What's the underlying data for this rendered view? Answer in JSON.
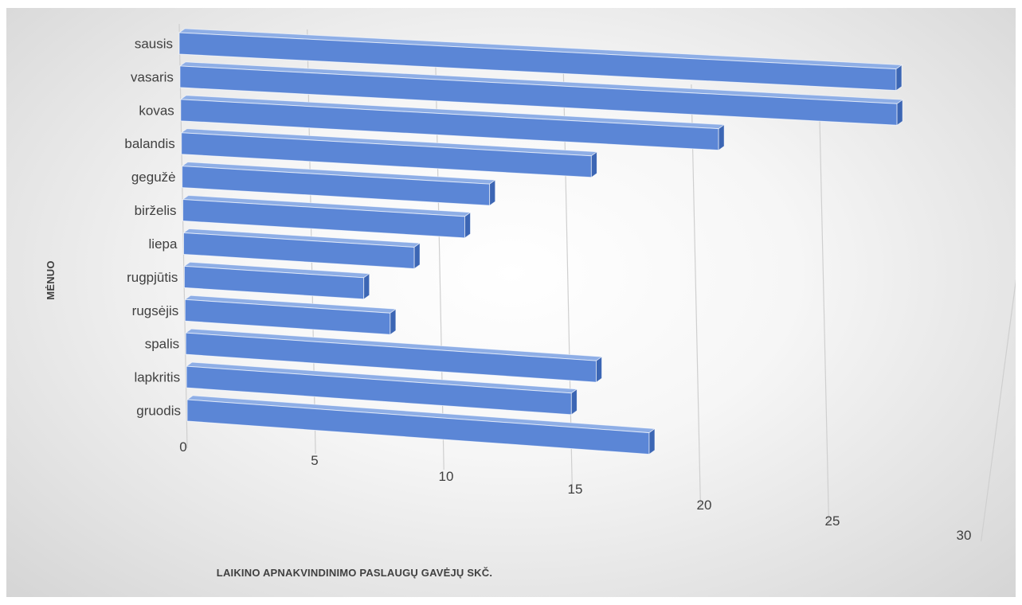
{
  "chart_data": {
    "type": "bar",
    "orientation": "horizontal",
    "style": "3d",
    "categories": [
      "sausis",
      "vasaris",
      "kovas",
      "balandis",
      "gegužė",
      "birželis",
      "liepa",
      "rugpjūtis",
      "rugsėjis",
      "spalis",
      "lapkritis",
      "gruodis"
    ],
    "values": [
      28,
      28,
      21,
      16,
      12,
      11,
      9,
      7,
      8,
      16,
      15,
      18
    ],
    "xlabel": "LAIKINO APNAKVINDINIMO PASLAUGŲ GAVĖJŲ SKČ.",
    "ylabel": "MĖNUO",
    "xlim": [
      0,
      30
    ],
    "xticks": [
      "0",
      "5",
      "10",
      "15",
      "20",
      "25",
      "30"
    ],
    "grid": true,
    "legend": "none",
    "colors": {
      "bar_front": "#5b86d6",
      "bar_top": "#8eaee6",
      "bar_side": "#3c66b4",
      "grid": "#cfcfcf",
      "text": "#404040"
    }
  }
}
